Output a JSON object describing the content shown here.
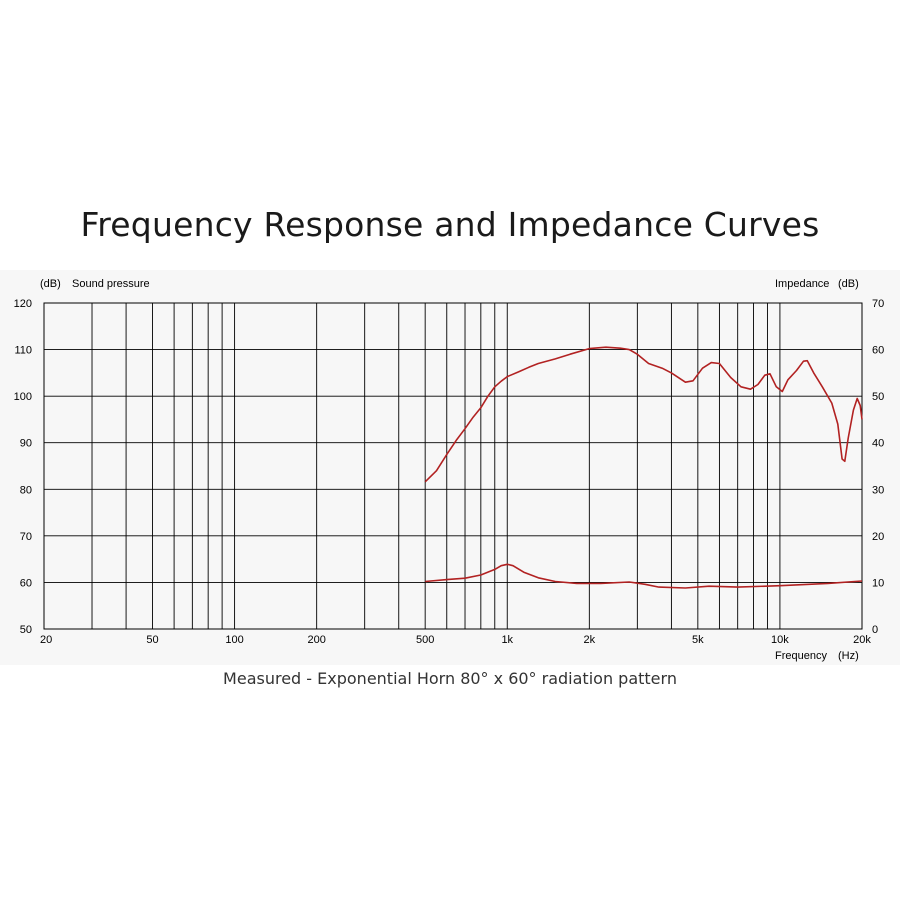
{
  "title": "Frequency Response and Impedance Curves",
  "caption": "Measured - Exponential Horn 80° x 60° radiation pattern",
  "chart_data": {
    "type": "line",
    "x_scale": "log",
    "xlim": [
      20,
      20000
    ],
    "x_ticks": [
      {
        "value": 20,
        "label": "20"
      },
      {
        "value": 50,
        "label": "50"
      },
      {
        "value": 100,
        "label": "100"
      },
      {
        "value": 200,
        "label": "200"
      },
      {
        "value": 500,
        "label": "500"
      },
      {
        "value": 1000,
        "label": "1k"
      },
      {
        "value": 2000,
        "label": "2k"
      },
      {
        "value": 5000,
        "label": "5k"
      },
      {
        "value": 10000,
        "label": "10k"
      },
      {
        "value": 20000,
        "label": "20k"
      }
    ],
    "xlabel": "Frequency",
    "xunit": "(Hz)",
    "left_axis": {
      "label": "Sound pressure",
      "unit": "(dB)",
      "lim": [
        50,
        120
      ],
      "ticks": [
        50,
        60,
        70,
        80,
        90,
        100,
        110,
        120
      ]
    },
    "right_axis": {
      "label": "Impedance",
      "unit": "(dB)",
      "lim": [
        0,
        70
      ],
      "ticks": [
        0,
        10,
        20,
        30,
        40,
        50,
        60,
        70
      ]
    },
    "grid": true,
    "line_color": "#b22222",
    "series": [
      {
        "axis": "left",
        "points": [
          [
            500,
            81.6
          ],
          [
            550,
            84
          ],
          [
            600,
            87.5
          ],
          [
            650,
            90.5
          ],
          [
            700,
            93
          ],
          [
            750,
            95.5
          ],
          [
            800,
            97.5
          ],
          [
            850,
            100
          ],
          [
            900,
            102
          ],
          [
            950,
            103.2
          ],
          [
            1000,
            104.2
          ],
          [
            1100,
            105.2
          ],
          [
            1200,
            106.2
          ],
          [
            1300,
            107
          ],
          [
            1500,
            108
          ],
          [
            1700,
            109
          ],
          [
            2000,
            110.2
          ],
          [
            2300,
            110.5
          ],
          [
            2600,
            110.3
          ],
          [
            2800,
            110
          ],
          [
            3000,
            109
          ],
          [
            3300,
            107
          ],
          [
            3700,
            106
          ],
          [
            4000,
            105
          ],
          [
            4500,
            103
          ],
          [
            4800,
            103.3
          ],
          [
            5200,
            106
          ],
          [
            5600,
            107.2
          ],
          [
            6000,
            107
          ],
          [
            6600,
            104
          ],
          [
            7200,
            102
          ],
          [
            7800,
            101.5
          ],
          [
            8300,
            102.5
          ],
          [
            8800,
            104.5
          ],
          [
            9200,
            104.8
          ],
          [
            9700,
            102
          ],
          [
            10200,
            101
          ],
          [
            10700,
            103.5
          ],
          [
            11500,
            105.5
          ],
          [
            12200,
            107.5
          ],
          [
            12600,
            107.6
          ],
          [
            13300,
            105
          ],
          [
            14300,
            102
          ],
          [
            15500,
            98.5
          ],
          [
            16300,
            94
          ],
          [
            16900,
            86.5
          ],
          [
            17300,
            86
          ],
          [
            17800,
            91
          ],
          [
            18600,
            97
          ],
          [
            19200,
            99.5
          ],
          [
            19700,
            98
          ],
          [
            20000,
            95
          ]
        ]
      },
      {
        "axis": "right",
        "points": [
          [
            500,
            10.2
          ],
          [
            600,
            10.6
          ],
          [
            700,
            10.9
          ],
          [
            800,
            11.6
          ],
          [
            900,
            12.8
          ],
          [
            950,
            13.6
          ],
          [
            1000,
            13.9
          ],
          [
            1050,
            13.6
          ],
          [
            1150,
            12.2
          ],
          [
            1300,
            11
          ],
          [
            1500,
            10.2
          ],
          [
            1800,
            9.8
          ],
          [
            2200,
            9.8
          ],
          [
            2800,
            10.1
          ],
          [
            3200,
            9.6
          ],
          [
            3600,
            9
          ],
          [
            4500,
            8.8
          ],
          [
            5500,
            9.2
          ],
          [
            7000,
            9
          ],
          [
            10000,
            9.3
          ],
          [
            15000,
            9.8
          ],
          [
            20000,
            10.3
          ]
        ]
      }
    ]
  }
}
